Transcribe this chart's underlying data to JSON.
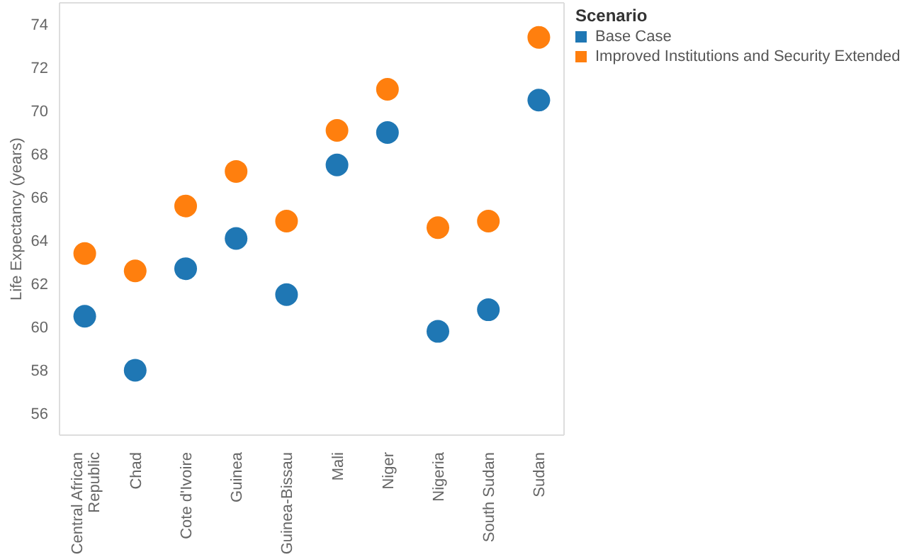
{
  "chart_data": {
    "type": "scatter",
    "ylabel": "Life Expectancy (years)",
    "legend_title": "Scenario",
    "legend": "top right",
    "marker": "circle",
    "grid": false,
    "categories": [
      "Central African Republic",
      "Chad",
      "Cote d'Ivoire",
      "Guinea",
      "Guinea-Bissau",
      "Mali",
      "Niger",
      "Nigeria",
      "South Sudan",
      "Sudan"
    ],
    "ylim": [
      55,
      75
    ],
    "yticks": [
      56,
      58,
      60,
      62,
      64,
      66,
      68,
      70,
      72,
      74
    ],
    "series": [
      {
        "name": "Base Case",
        "color": "#1f77b4",
        "values": [
          60.5,
          58.0,
          62.7,
          64.1,
          61.5,
          67.5,
          69.0,
          59.8,
          60.8,
          70.5
        ]
      },
      {
        "name": "Improved Institutions and Security Extended",
        "color": "#ff7f0e",
        "values": [
          63.4,
          62.6,
          65.6,
          67.2,
          64.9,
          69.1,
          71.0,
          64.6,
          64.9,
          73.4
        ]
      }
    ]
  }
}
